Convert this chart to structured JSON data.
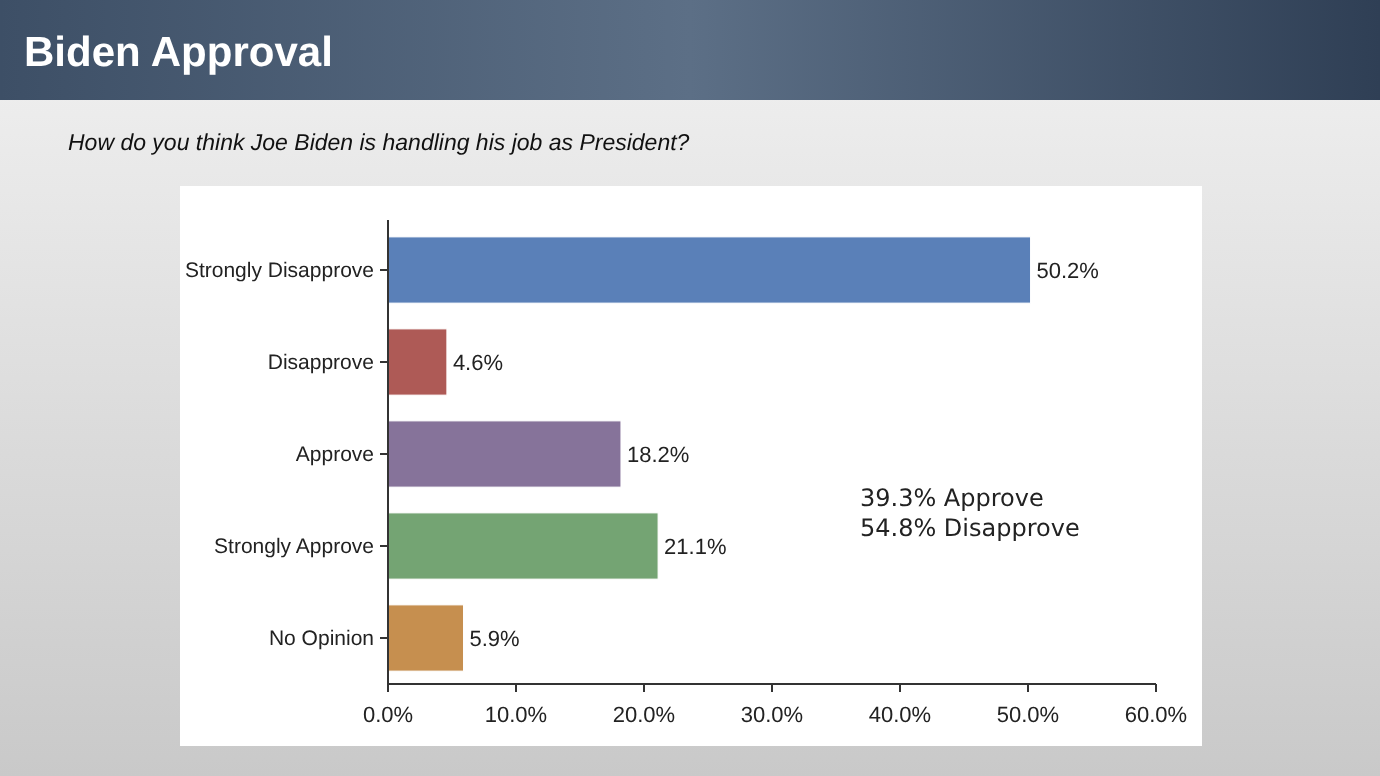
{
  "chart_data": {
    "type": "bar",
    "orientation": "horizontal",
    "title": "Biden Approval",
    "subtitle": "How do you think Joe Biden is handling his job as President?",
    "categories": [
      "Strongly Disapprove",
      "Disapprove",
      "Approve",
      "Strongly Approve",
      "No Opinion"
    ],
    "values": [
      50.2,
      4.6,
      18.2,
      21.1,
      5.9
    ],
    "colors": [
      "#5a80b8",
      "#ae5a56",
      "#86739a",
      "#74a473",
      "#c68f4f"
    ],
    "value_labels": [
      "50.2%",
      "4.6%",
      "18.2%",
      "21.1%",
      "5.9%"
    ],
    "xlim": [
      0,
      60
    ],
    "xticks": [
      {
        "value": 0,
        "label": "0.0%"
      },
      {
        "value": 10,
        "label": "10.0%"
      },
      {
        "value": 20,
        "label": "20.0%"
      },
      {
        "value": 30,
        "label": "30.0%"
      },
      {
        "value": 40,
        "label": "40.0%"
      },
      {
        "value": 50,
        "label": "50.0%"
      },
      {
        "value": 60,
        "label": "60.0%"
      }
    ],
    "annotations": [
      "39.3% Approve",
      "54.8% Disapprove"
    ]
  }
}
